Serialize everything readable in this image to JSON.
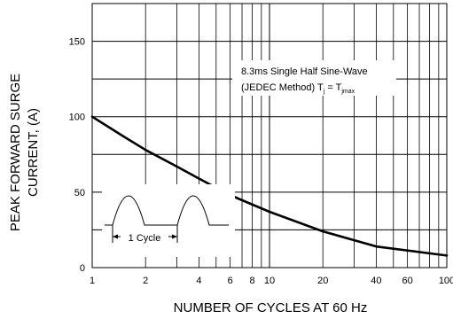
{
  "chart_data": {
    "type": "line",
    "xlabel": "NUMBER OF CYCLES AT 60 Hz",
    "ylabel_line1": "PEAK FORWARD SURGE",
    "ylabel_line2": "CURRENT, (A)",
    "x_scale": "log",
    "xlim": [
      1,
      100
    ],
    "ylim": [
      0,
      175
    ],
    "x_major_ticks": [
      1,
      10,
      100
    ],
    "x_minor_ticks": [
      2,
      3,
      4,
      5,
      6,
      7,
      8,
      9,
      20,
      30,
      40,
      50,
      60,
      70,
      80,
      90
    ],
    "x_tick_labels": [
      {
        "value": 1,
        "label": "1"
      },
      {
        "value": 2,
        "label": "2"
      },
      {
        "value": 4,
        "label": "4"
      },
      {
        "value": 6,
        "label": "6"
      },
      {
        "value": 8,
        "label": "8"
      },
      {
        "value": 10,
        "label": "10"
      },
      {
        "value": 20,
        "label": "20"
      },
      {
        "value": 40,
        "label": "40"
      },
      {
        "value": 60,
        "label": "60"
      },
      {
        "value": 100,
        "label": "100"
      }
    ],
    "y_gridlines": [
      25,
      50,
      75,
      100,
      125,
      150
    ],
    "y_tick_labels": [
      {
        "value": 0,
        "label": "0"
      },
      {
        "value": 50,
        "label": "50"
      },
      {
        "value": 100,
        "label": "100"
      },
      {
        "value": 150,
        "label": "150"
      }
    ],
    "grid": true,
    "series": [
      {
        "x": [
          1,
          1.5,
          2,
          3,
          4,
          6,
          10,
          20,
          40,
          100
        ],
        "y": [
          100,
          87,
          78,
          67,
          59,
          48,
          37,
          24,
          14,
          8
        ]
      }
    ],
    "annotation": {
      "line1": "8.3ms Single Half Sine-Wave",
      "line2_main": "(JEDEC Method) T",
      "line2_sub1": "j",
      "line2_mid": " = T",
      "line2_sub2": "jmax"
    },
    "inset": {
      "label": "1 Cycle"
    }
  }
}
